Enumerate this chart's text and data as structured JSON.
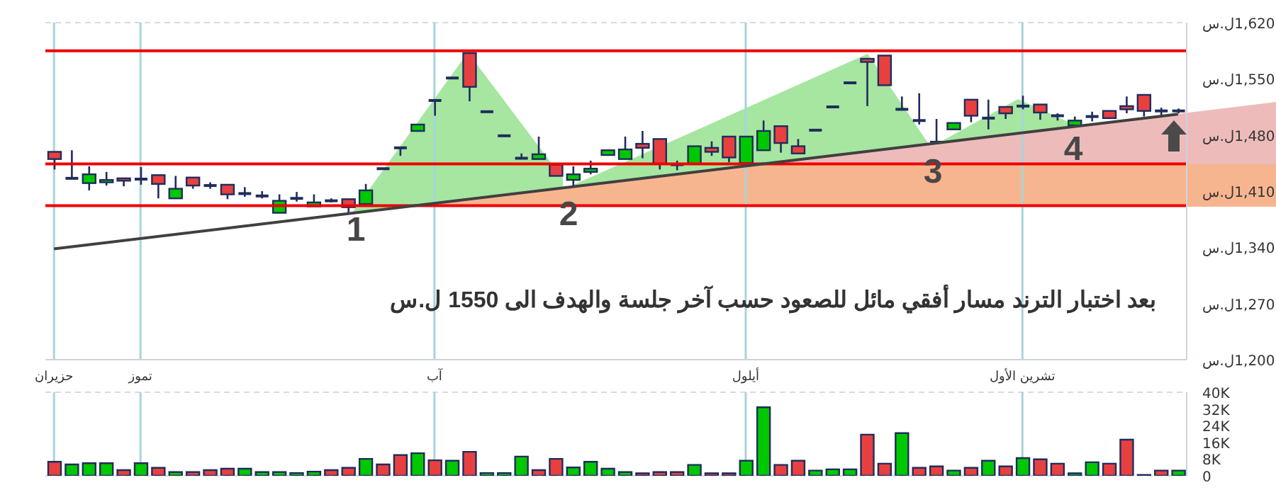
{
  "chart_data": [
    {
      "type": "candlestick",
      "categories": [
        "حزيران",
        null,
        null,
        null,
        null,
        "تموز",
        null,
        null,
        null,
        null,
        null,
        null,
        null,
        null,
        null,
        null,
        null,
        null,
        null,
        null,
        null,
        null,
        "آب",
        null,
        null,
        null,
        null,
        null,
        null,
        null,
        null,
        null,
        null,
        null,
        null,
        null,
        null,
        null,
        null,
        null,
        "أيلول",
        null,
        null,
        null,
        null,
        null,
        null,
        null,
        null,
        null,
        null,
        null,
        null,
        null,
        null,
        null,
        "تشرين الأول",
        null,
        null,
        null,
        null,
        null,
        null,
        null,
        null,
        null
      ],
      "ohlc": [
        [
          1459,
          1459,
          1437,
          1450
        ],
        [
          1426,
          1461,
          1426,
          1426
        ],
        [
          1420,
          1441,
          1411,
          1431
        ],
        [
          1421,
          1434,
          1417,
          1424
        ],
        [
          1426,
          1426,
          1416,
          1423
        ],
        [
          1425,
          1440,
          1418,
          1425
        ],
        [
          1430,
          1430,
          1401,
          1419
        ],
        [
          1401,
          1429,
          1401,
          1413
        ],
        [
          1427,
          1427,
          1413,
          1417
        ],
        [
          1417,
          1421,
          1413,
          1417
        ],
        [
          1418,
          1418,
          1400,
          1406
        ],
        [
          1407,
          1415,
          1403,
          1407
        ],
        [
          1404,
          1410,
          1401,
          1404
        ],
        [
          1383,
          1406,
          1383,
          1398
        ],
        [
          1401,
          1409,
          1397,
          1401
        ],
        [
          1391,
          1406,
          1391,
          1396
        ],
        [
          1398,
          1401,
          1396,
          1398
        ],
        [
          1400,
          1400,
          1381,
          1390
        ],
        [
          1394,
          1419,
          1394,
          1411
        ],
        [
          1438,
          1438,
          1438,
          1438
        ],
        [
          1464,
          1464,
          1454,
          1464
        ],
        [
          1485,
          1493,
          1485,
          1493
        ],
        [
          1523,
          1523,
          1504,
          1523
        ],
        [
          1551,
          1551,
          1551,
          1551
        ],
        [
          1582,
          1582,
          1522,
          1540
        ],
        [
          1509,
          1509,
          1509,
          1509
        ],
        [
          1479,
          1479,
          1479,
          1479
        ],
        [
          1451,
          1457,
          1451,
          1451
        ],
        [
          1450,
          1478,
          1450,
          1456
        ],
        [
          1443,
          1443,
          1429,
          1429
        ],
        [
          1424,
          1441,
          1416,
          1431
        ],
        [
          1434,
          1448,
          1431,
          1438
        ],
        [
          1455,
          1461,
          1455,
          1461
        ],
        [
          1450,
          1478,
          1450,
          1462
        ],
        [
          1469,
          1485,
          1451,
          1464
        ],
        [
          1475,
          1475,
          1437,
          1444
        ],
        [
          1443,
          1448,
          1436,
          1443
        ],
        [
          1444,
          1466,
          1444,
          1466
        ],
        [
          1464,
          1472,
          1454,
          1459
        ],
        [
          1478,
          1478,
          1446,
          1452
        ],
        [
          1445,
          1478,
          1445,
          1478
        ],
        [
          1461,
          1498,
          1461,
          1485
        ],
        [
          1491,
          1491,
          1458,
          1470
        ],
        [
          1466,
          1475,
          1457,
          1457
        ],
        [
          1486,
          1486,
          1486,
          1486
        ],
        [
          1515,
          1515,
          1515,
          1515
        ],
        [
          1545,
          1545,
          1545,
          1545
        ],
        [
          1575,
          1575,
          1516,
          1571
        ],
        [
          1579,
          1579,
          1542,
          1542
        ],
        [
          1512,
          1528,
          1512,
          1512
        ],
        [
          1498,
          1532,
          1493,
          1498
        ],
        [
          1471,
          1500,
          1471,
          1471
        ],
        [
          1487,
          1495,
          1487,
          1495
        ],
        [
          1524,
          1524,
          1496,
          1504
        ],
        [
          1501,
          1524,
          1487,
          1501
        ],
        [
          1515,
          1515,
          1500,
          1507
        ],
        [
          1516,
          1529,
          1512,
          1516
        ],
        [
          1518,
          1518,
          1499,
          1508
        ],
        [
          1504,
          1507,
          1498,
          1504
        ],
        [
          1492,
          1503,
          1492,
          1498
        ],
        [
          1503,
          1509,
          1497,
          1503
        ],
        [
          1510,
          1510,
          1501,
          1501
        ],
        [
          1516,
          1528,
          1507,
          1512
        ],
        [
          1530,
          1530,
          1503,
          1510
        ],
        [
          1510,
          1514,
          1504,
          1510
        ],
        [
          1510,
          1513,
          1507,
          1510
        ]
      ],
      "colors": [
        "#e84040",
        "#1f2d5c",
        "#00c800",
        "#00c800",
        "#e84040",
        "#1f2d5c",
        "#e84040",
        "#00c800",
        "#e84040",
        "#1f2d5c",
        "#e84040",
        "#1f2d5c",
        "#1f2d5c",
        "#00c800",
        "#1f2d5c",
        "#00c800",
        "#1f2d5c",
        "#e84040",
        "#00c800",
        "#1f2d5c",
        "#1f2d5c",
        "#00c800",
        "#1f2d5c",
        "#1f2d5c",
        "#e84040",
        "#1f2d5c",
        "#1f2d5c",
        "#1f2d5c",
        "#00c800",
        "#e84040",
        "#00c800",
        "#00c800",
        "#00c800",
        "#00c800",
        "#e84040",
        "#e84040",
        "#1f2d5c",
        "#00c800",
        "#e84040",
        "#e84040",
        "#00c800",
        "#00c800",
        "#e84040",
        "#e84040",
        "#1f2d5c",
        "#1f2d5c",
        "#1f2d5c",
        "#e84040",
        "#e84040",
        "#1f2d5c",
        "#1f2d5c",
        "#1f2d5c",
        "#00c800",
        "#e84040",
        "#1f2d5c",
        "#e84040",
        "#1f2d5c",
        "#e84040",
        "#1f2d5c",
        "#00c800",
        "#1f2d5c",
        "#e84040",
        "#e84040",
        "#e84040",
        "#1f2d5c",
        "#1f2d5c"
      ],
      "series": [
        {
          "type": "line",
          "color": "#404040",
          "values": [
            1338,
            null,
            null,
            null,
            null,
            null,
            null,
            null,
            null,
            null,
            null,
            null,
            null,
            null,
            null,
            null,
            null,
            null,
            null,
            null,
            null,
            null,
            null,
            null,
            null,
            null,
            null,
            null,
            null,
            null,
            null,
            null,
            null,
            null,
            null,
            null,
            null,
            null,
            null,
            null,
            null,
            null,
            null,
            null,
            null,
            null,
            null,
            null,
            null,
            null,
            null,
            null,
            null,
            null,
            null,
            null,
            null,
            null,
            null,
            null,
            null,
            null,
            null,
            null,
            null,
            1506
          ]
        }
      ],
      "ylim": [
        1200,
        1620
      ],
      "yticks": [
        {
          "value": 1200,
          "label": "1,200ل.س"
        },
        {
          "value": 1270,
          "label": "1,270ل.س"
        },
        {
          "value": 1340,
          "label": "1,340ل.س"
        },
        {
          "value": 1410,
          "label": "1,410ل.س"
        },
        {
          "value": 1480,
          "label": "1,480ل.س"
        },
        {
          "value": 1550,
          "label": "1,550ل.س"
        },
        {
          "value": 1620,
          "label": "1,620ل.س"
        }
      ],
      "ref_lines": [
        {
          "axis": "y",
          "value": 1585,
          "color": "#ee0000"
        },
        {
          "axis": "y",
          "value": 1444,
          "color": "#ee0000"
        },
        {
          "axis": "y",
          "value": 1392,
          "color": "#ee0000"
        }
      ],
      "grid": true,
      "annotations": [
        "1",
        "2",
        "3",
        "4",
        "بعد اختبار الترند مسار أفقي مائل للصعود حسب آخر جلسة والهدف الى 1550 ل.س"
      ]
    },
    {
      "type": "bar",
      "categories": [
        null,
        null,
        null,
        null,
        null,
        null,
        null,
        null,
        null,
        null,
        null,
        null,
        null,
        null,
        null,
        null,
        null,
        null,
        null,
        null,
        null,
        null,
        null,
        null,
        null,
        null,
        null,
        null,
        null,
        null,
        null,
        null,
        null,
        null,
        null,
        null,
        null,
        null,
        null,
        null,
        null,
        null,
        null,
        null,
        null,
        null,
        null,
        null,
        null,
        null,
        null,
        null,
        null,
        null,
        null,
        null,
        null,
        null,
        null,
        null,
        null,
        null,
        null,
        null,
        null,
        null
      ],
      "values": [
        6700,
        5400,
        6000,
        6000,
        2700,
        6000,
        3800,
        1800,
        1800,
        2700,
        3400,
        3400,
        1800,
        1800,
        1300,
        2000,
        2700,
        3800,
        8100,
        5400,
        9900,
        10800,
        7400,
        7200,
        11500,
        1300,
        1300,
        9200,
        2700,
        8100,
        4000,
        6700,
        3400,
        1800,
        1200,
        1800,
        1800,
        5200,
        1200,
        1200,
        7200,
        32800,
        5200,
        7200,
        2500,
        3100,
        3100,
        19700,
        5800,
        20400,
        3800,
        4500,
        2500,
        3800,
        7200,
        4500,
        8500,
        7900,
        5800,
        1200,
        6500,
        5800,
        17300,
        400,
        2500,
        2500
      ],
      "colors": [
        "#e84040",
        "#00c800",
        "#00c800",
        "#00c800",
        "#e84040",
        "#00c800",
        "#e84040",
        "#00c800",
        "#e84040",
        "#e84040",
        "#e84040",
        "#00c800",
        "#00c800",
        "#00c800",
        "#00c800",
        "#00c800",
        "#e84040",
        "#e84040",
        "#00c800",
        "#e84040",
        "#e84040",
        "#00c800",
        "#e84040",
        "#00c800",
        "#e84040",
        "#00c800",
        "#00c800",
        "#00c800",
        "#e84040",
        "#e84040",
        "#00c800",
        "#00c800",
        "#00c800",
        "#00c800",
        "#e84040",
        "#e84040",
        "#e84040",
        "#00c800",
        "#e84040",
        "#e84040",
        "#00c800",
        "#00c800",
        "#e84040",
        "#e84040",
        "#00c800",
        "#00c800",
        "#00c800",
        "#e84040",
        "#e84040",
        "#00c800",
        "#e84040",
        "#e84040",
        "#00c800",
        "#e84040",
        "#00c800",
        "#e84040",
        "#00c800",
        "#e84040",
        "#e84040",
        "#00c800",
        "#00c800",
        "#e84040",
        "#e84040",
        "#1f2d5c",
        "#e84040",
        "#00c800"
      ],
      "ylim": [
        0,
        40000
      ],
      "yticks": [
        0,
        {
          "value": 8000,
          "label": "8K"
        },
        {
          "value": 16000,
          "label": "16K"
        },
        {
          "value": 24000,
          "label": "24K"
        },
        {
          "value": 32000,
          "label": "32K"
        },
        {
          "value": 40000,
          "label": "40K"
        }
      ],
      "grid": true,
      "tick_labels": "y"
    }
  ]
}
